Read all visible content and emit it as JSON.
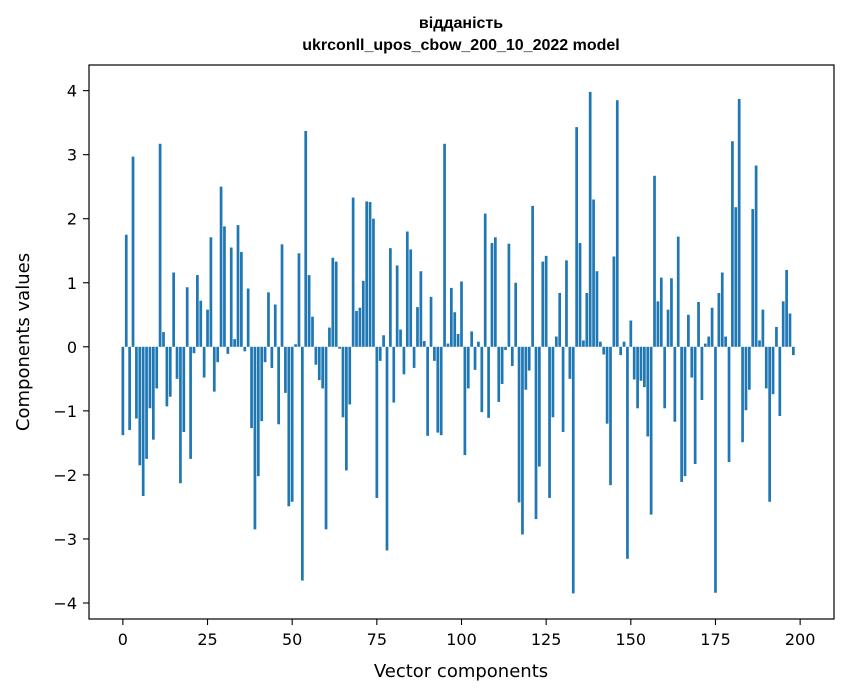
{
  "chart_data": {
    "type": "bar",
    "title": "відданість",
    "subtitle": "ukrconll_upos_cbow_200_10_2022 model",
    "xlabel": "Vector components",
    "ylabel": "Components values",
    "xlim": [
      -10,
      210
    ],
    "ylim": [
      -4.25,
      4.4
    ],
    "xticks": [
      0,
      25,
      50,
      75,
      100,
      125,
      150,
      175,
      200
    ],
    "yticks": [
      -4,
      -3,
      -2,
      -1,
      0,
      1,
      2,
      3,
      4
    ],
    "bar_color": "#1f77b4",
    "series": [
      {
        "name": "відданість",
        "values": [
          -1.38,
          1.75,
          -1.3,
          2.97,
          -1.12,
          -1.85,
          -2.33,
          -1.75,
          -0.96,
          -1.45,
          -0.65,
          3.17,
          0.23,
          -0.93,
          -0.78,
          1.16,
          -0.5,
          -2.13,
          -1.33,
          0.93,
          -1.75,
          -0.1,
          1.12,
          0.72,
          -0.48,
          0.58,
          1.71,
          -0.7,
          -0.24,
          2.5,
          1.88,
          -0.11,
          1.55,
          0.12,
          1.9,
          1.48,
          -0.07,
          0.91,
          -1.27,
          -2.85,
          -2.02,
          -1.16,
          -0.24,
          0.85,
          -0.33,
          0.66,
          -1.21,
          1.6,
          -0.72,
          -2.49,
          -2.42,
          0.04,
          1.46,
          -3.65,
          3.37,
          1.12,
          0.47,
          -0.28,
          -0.52,
          -0.65,
          -2.85,
          0.3,
          1.39,
          1.33,
          -0.03,
          -1.1,
          -1.93,
          -0.9,
          2.33,
          0.56,
          0.61,
          1.03,
          2.27,
          2.26,
          2.0,
          -2.36,
          -0.22,
          0.18,
          -3.18,
          1.54,
          -0.87,
          1.27,
          0.27,
          -0.43,
          1.8,
          1.52,
          -0.33,
          0.62,
          1.18,
          0.09,
          -1.39,
          0.78,
          -0.22,
          -1.34,
          -1.38,
          3.17,
          0.05,
          0.92,
          0.54,
          0.2,
          1.02,
          -1.69,
          -0.65,
          0.24,
          -0.36,
          0.08,
          -1.02,
          2.08,
          -1.11,
          1.62,
          1.71,
          -0.86,
          -0.58,
          -0.05,
          1.61,
          -0.3,
          1.0,
          -2.43,
          -2.93,
          -0.67,
          -0.37,
          2.2,
          -2.69,
          -1.87,
          1.33,
          1.42,
          -2.36,
          -1.1,
          0.16,
          0.84,
          -1.33,
          1.35,
          -0.5,
          -3.85,
          3.43,
          1.62,
          0.1,
          0.84,
          3.98,
          2.3,
          1.18,
          0.08,
          -0.12,
          -1.2,
          -2.16,
          1.41,
          3.85,
          -0.13,
          0.08,
          -3.31,
          0.41,
          -0.51,
          -0.96,
          -0.53,
          -0.63,
          -1.4,
          -2.62,
          2.67,
          0.71,
          1.08,
          -0.96,
          0.58,
          1.07,
          -1.17,
          1.72,
          -2.11,
          -2.02,
          0.5,
          -0.48,
          -1.83,
          0.7,
          -0.83,
          0.05,
          0.16,
          0.61,
          -3.84,
          0.84,
          1.16,
          0.16,
          -1.8,
          3.21,
          2.18,
          3.87,
          -1.49,
          -0.99,
          -0.67,
          2.15,
          2.83,
          0.1,
          0.58,
          -0.65,
          -2.42,
          -0.74,
          0.31,
          -1.08,
          0.71,
          1.2,
          0.52,
          -0.13
        ]
      }
    ]
  }
}
